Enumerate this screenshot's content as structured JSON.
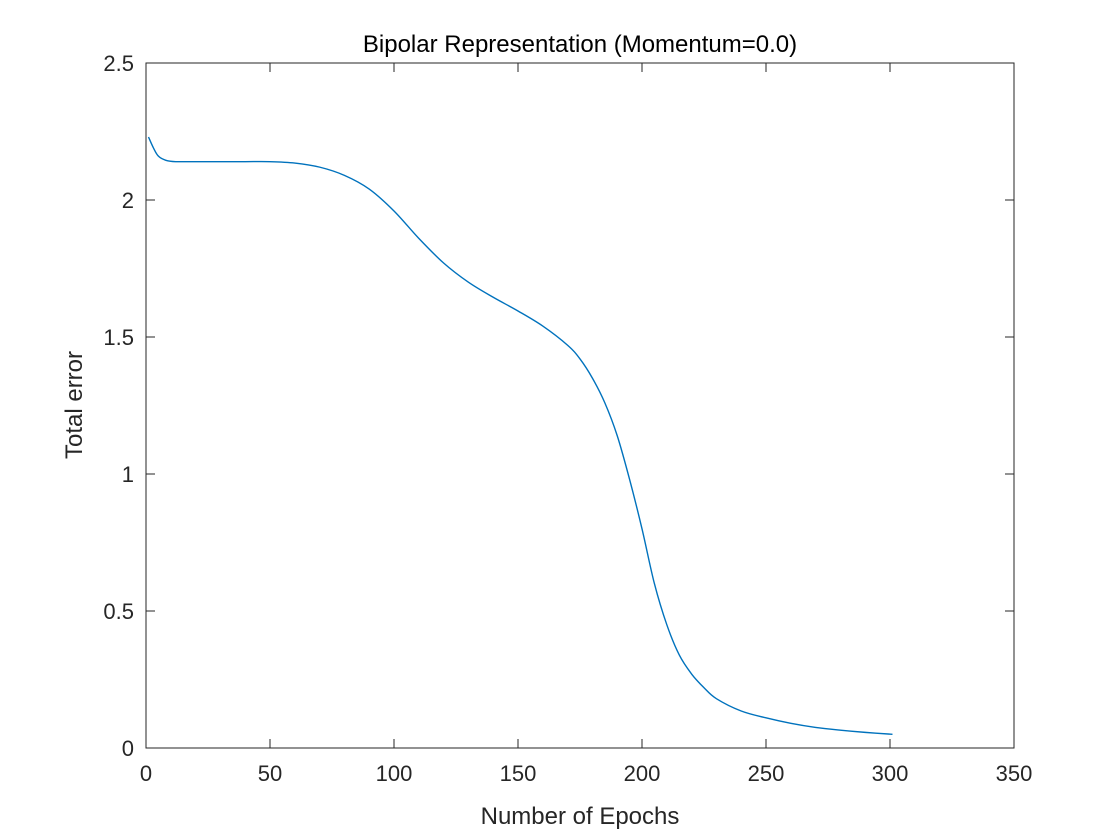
{
  "chart_data": {
    "type": "line",
    "title": "Bipolar Representation (Momentum=0.0)",
    "xlabel": "Number of Epochs",
    "ylabel": "Total error",
    "xlim": [
      0,
      350
    ],
    "ylim": [
      0,
      2.5
    ],
    "xticks": [
      0,
      50,
      100,
      150,
      200,
      250,
      300,
      350
    ],
    "yticks": [
      0,
      0.5,
      1,
      1.5,
      2,
      2.5
    ],
    "xtick_labels": [
      "0",
      "50",
      "100",
      "150",
      "200",
      "250",
      "300",
      "350"
    ],
    "ytick_labels": [
      "0",
      "0.5",
      "1",
      "1.5",
      "2",
      "2.5"
    ],
    "grid": false,
    "series": [
      {
        "color": "#0072BD",
        "x": [
          1,
          3,
          5,
          8,
          12,
          20,
          30,
          40,
          50,
          60,
          70,
          80,
          90,
          100,
          110,
          120,
          130,
          140,
          150,
          160,
          170,
          175,
          180,
          185,
          190,
          195,
          200,
          205,
          210,
          215,
          220,
          225,
          230,
          240,
          250,
          260,
          270,
          280,
          290,
          301
        ],
        "y": [
          2.23,
          2.19,
          2.16,
          2.145,
          2.14,
          2.14,
          2.14,
          2.14,
          2.14,
          2.135,
          2.12,
          2.09,
          2.04,
          1.96,
          1.86,
          1.77,
          1.7,
          1.645,
          1.595,
          1.54,
          1.47,
          1.42,
          1.35,
          1.26,
          1.14,
          0.98,
          0.8,
          0.6,
          0.45,
          0.34,
          0.27,
          0.22,
          0.18,
          0.135,
          0.11,
          0.09,
          0.075,
          0.065,
          0.057,
          0.05
        ]
      }
    ]
  }
}
